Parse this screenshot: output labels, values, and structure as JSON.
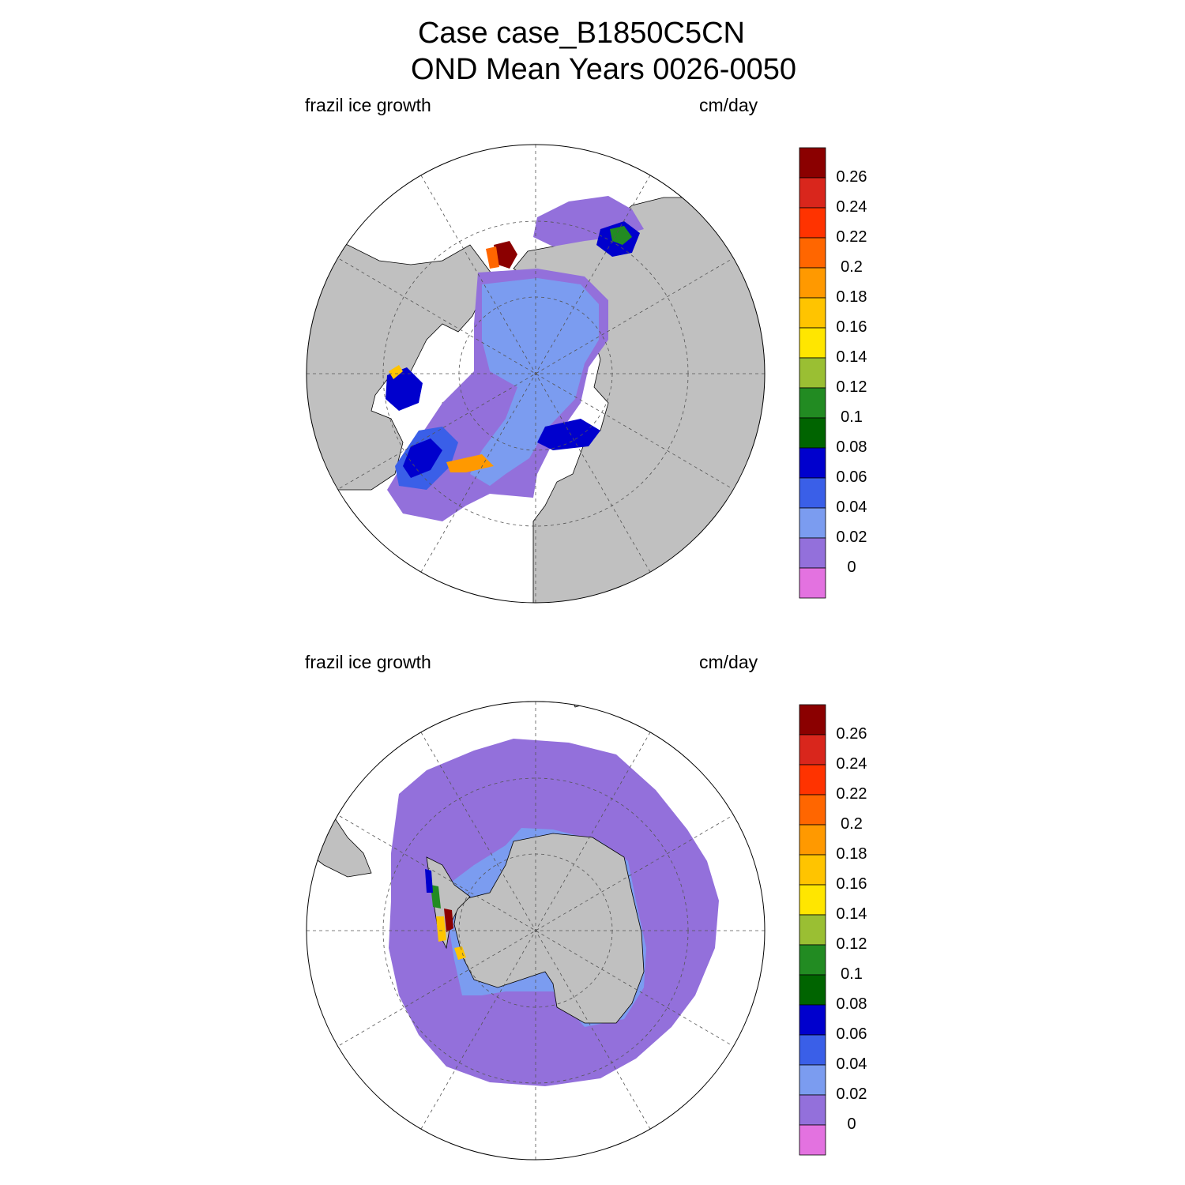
{
  "title": {
    "line1": "Case case_B1850C5CN",
    "line2": "OND Mean   Years 0026-0050"
  },
  "panels": [
    {
      "hemisphere": "north",
      "left_label": "frazil ice growth",
      "right_label": "cm/day"
    },
    {
      "hemisphere": "south",
      "left_label": "frazil ice growth",
      "right_label": "cm/day"
    }
  ],
  "colorbar": {
    "labels": [
      "0.26",
      "0.24",
      "0.22",
      "0.2",
      "0.18",
      "0.16",
      "0.14",
      "0.12",
      "0.1",
      "0.08",
      "0.06",
      "0.04",
      "0.02",
      "0"
    ],
    "colors_top_to_bottom": [
      "#8b0000",
      "#d9261c",
      "#ff3300",
      "#ff6600",
      "#ff9900",
      "#ffc400",
      "#ffe600",
      "#9abf33",
      "#228b22",
      "#006400",
      "#0000cd",
      "#3a5fe8",
      "#7b9cf0",
      "#9370db",
      "#e372e0"
    ]
  },
  "map_colors": {
    "land": "#c0c0c0",
    "ocean": "#ffffff",
    "ice_zero": "#9370db",
    "ice_low": "#7b9cf0"
  }
}
